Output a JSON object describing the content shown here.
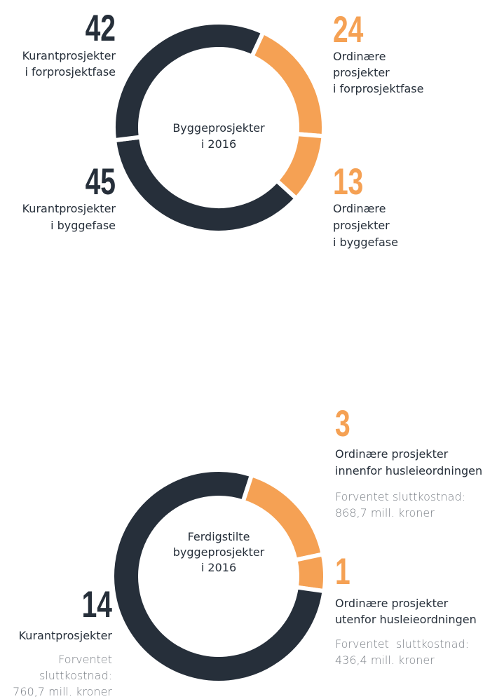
{
  "chart_data": [
    {
      "type": "donut",
      "center_label": [
        "Byggeprosjekter",
        "i 2016"
      ],
      "categories": [
        [
          "Ordinære",
          "prosjekter",
          "i forprosjektfase"
        ],
        [
          "Ordinære",
          "prosjekter",
          "i byggefase"
        ],
        [
          "Kurantprosjekter",
          "i byggefase"
        ],
        [
          "Kurantprosjekter",
          "i forprosjektfase"
        ]
      ],
      "values": [
        24,
        13,
        45,
        42
      ],
      "colors": [
        "#f5a154",
        "#f5a154",
        "#262f3a",
        "#262f3a"
      ]
    },
    {
      "type": "donut",
      "center_label": [
        "Ferdigstilte",
        "byggeprosjekter",
        "i 2016"
      ],
      "categories": [
        [
          "Ordinære prosjekter",
          "innenfor husleieordningen"
        ],
        [
          "Ordinære prosjekter",
          "utenfor husleieordningen"
        ],
        [
          "Kurantprosjekter"
        ]
      ],
      "values": [
        3,
        1,
        14
      ],
      "notes": [
        [
          "Forventet sluttkostnad:",
          "868,7 mill. kroner"
        ],
        [
          "Forventet  sluttkostnad:",
          "436,4 mill. kroner"
        ],
        [
          "Forventet",
          "sluttkostnad:",
          "760,7 mill. kroner"
        ]
      ],
      "colors": [
        "#f5a154",
        "#f5a154",
        "#262f3a"
      ]
    }
  ]
}
